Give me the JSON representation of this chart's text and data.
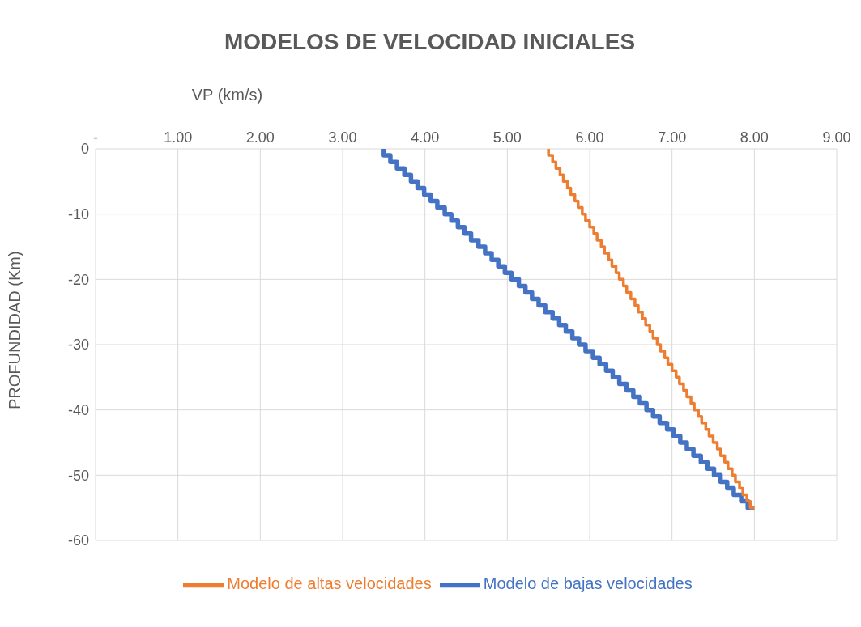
{
  "chart_data": {
    "type": "step",
    "title": "MODELOS DE VELOCIDAD INICIALES",
    "xlabel": "VP (km/s)",
    "ylabel": "PROFUNDIDAD (Km)",
    "xlim": [
      0,
      9
    ],
    "xticks": [
      {
        "value": 0,
        "label": "-"
      },
      {
        "value": 1,
        "label": "1.00"
      },
      {
        "value": 2,
        "label": "2.00"
      },
      {
        "value": 3,
        "label": "3.00"
      },
      {
        "value": 4,
        "label": "4.00"
      },
      {
        "value": 5,
        "label": "5.00"
      },
      {
        "value": 6,
        "label": "6.00"
      },
      {
        "value": 7,
        "label": "7.00"
      },
      {
        "value": 8,
        "label": "8.00"
      },
      {
        "value": 9,
        "label": "9.00"
      }
    ],
    "ylim": [
      -60,
      0
    ],
    "yticks": [
      0,
      -10,
      -20,
      -30,
      -40,
      -50,
      -60
    ],
    "grid": true,
    "legend": "bottom",
    "series": [
      {
        "name": "Modelo de bajas velocidades",
        "color": "#4472c4",
        "x": [
          3.5,
          3.58,
          3.66,
          3.75,
          3.83,
          3.91,
          3.99,
          4.07,
          4.15,
          4.24,
          4.32,
          4.4,
          4.48,
          4.56,
          4.65,
          4.73,
          4.81,
          4.89,
          4.97,
          5.05,
          5.14,
          5.22,
          5.3,
          5.38,
          5.46,
          5.55,
          5.63,
          5.71,
          5.79,
          5.87,
          5.95,
          6.04,
          6.12,
          6.2,
          6.28,
          6.36,
          6.45,
          6.53,
          6.61,
          6.69,
          6.77,
          6.85,
          6.94,
          7.02,
          7.1,
          7.18,
          7.26,
          7.35,
          7.43,
          7.51,
          7.59,
          7.67,
          7.75,
          7.84,
          7.92,
          8.0
        ],
        "values": [
          0,
          -1,
          -2,
          -3,
          -4,
          -5,
          -6,
          -7,
          -8,
          -9,
          -10,
          -11,
          -12,
          -13,
          -14,
          -15,
          -16,
          -17,
          -18,
          -19,
          -20,
          -21,
          -22,
          -23,
          -24,
          -25,
          -26,
          -27,
          -28,
          -29,
          -30,
          -31,
          -32,
          -33,
          -34,
          -35,
          -36,
          -37,
          -38,
          -39,
          -40,
          -41,
          -42,
          -43,
          -44,
          -45,
          -46,
          -47,
          -48,
          -49,
          -50,
          -51,
          -52,
          -53,
          -54,
          -55
        ]
      },
      {
        "name": "Modelo de altas velocidades",
        "color": "#ed7d31",
        "x": [
          5.5,
          5.55,
          5.59,
          5.64,
          5.68,
          5.73,
          5.77,
          5.82,
          5.86,
          5.91,
          5.95,
          6.0,
          6.05,
          6.09,
          6.14,
          6.18,
          6.23,
          6.27,
          6.32,
          6.36,
          6.41,
          6.45,
          6.5,
          6.55,
          6.59,
          6.64,
          6.68,
          6.73,
          6.77,
          6.82,
          6.86,
          6.91,
          6.95,
          7.0,
          7.05,
          7.09,
          7.14,
          7.18,
          7.23,
          7.27,
          7.32,
          7.36,
          7.41,
          7.45,
          7.5,
          7.55,
          7.59,
          7.64,
          7.68,
          7.73,
          7.77,
          7.82,
          7.86,
          7.91,
          7.95,
          8.0
        ],
        "values": [
          0,
          -1,
          -2,
          -3,
          -4,
          -5,
          -6,
          -7,
          -8,
          -9,
          -10,
          -11,
          -12,
          -13,
          -14,
          -15,
          -16,
          -17,
          -18,
          -19,
          -20,
          -21,
          -22,
          -23,
          -24,
          -25,
          -26,
          -27,
          -28,
          -29,
          -30,
          -31,
          -32,
          -33,
          -34,
          -35,
          -36,
          -37,
          -38,
          -39,
          -40,
          -41,
          -42,
          -43,
          -44,
          -45,
          -46,
          -47,
          -48,
          -49,
          -50,
          -51,
          -52,
          -53,
          -54,
          -55
        ]
      }
    ]
  }
}
